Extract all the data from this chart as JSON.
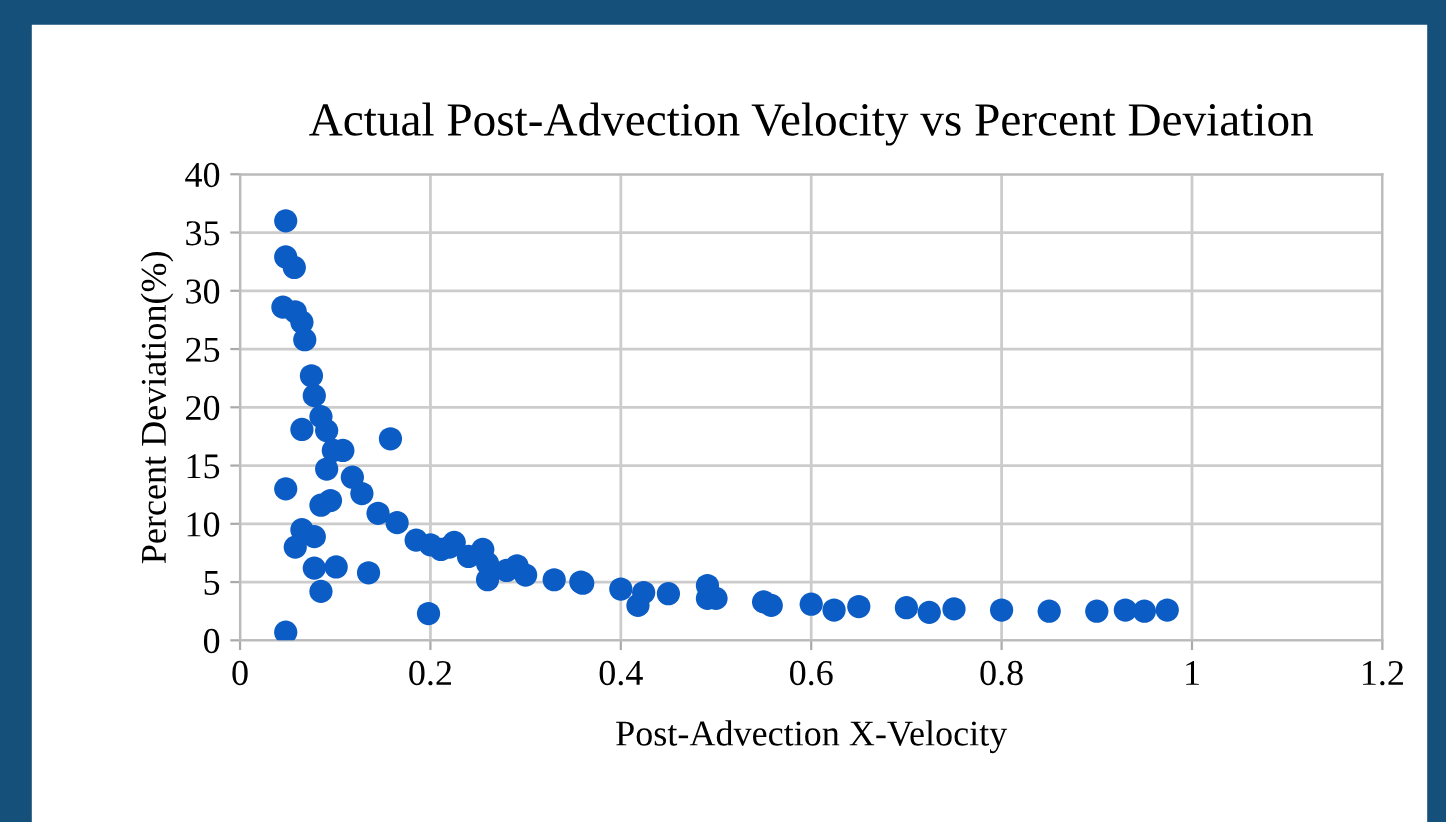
{
  "chart_data": {
    "type": "scatter",
    "title": "Actual Post-Advection Velocity vs Percent Deviation",
    "xlabel": "Post-Advection X-Velocity",
    "ylabel": "Percent Deviation(%)",
    "xlim": [
      0,
      1.2
    ],
    "xticks": [
      0,
      0.2,
      0.4,
      0.6,
      0.8,
      1,
      1.2
    ],
    "ylim": [
      0,
      40
    ],
    "yticks": [
      0,
      5,
      10,
      15,
      20,
      25,
      30,
      35,
      40
    ],
    "grid": true,
    "marker": "circle",
    "series": [
      {
        "color": "#0b5cc5",
        "x": [
          0.048,
          0.048,
          0.057,
          0.045,
          0.058,
          0.065,
          0.068,
          0.075,
          0.078,
          0.085,
          0.091,
          0.065,
          0.098,
          0.108,
          0.091,
          0.118,
          0.128,
          0.158,
          0.048,
          0.085,
          0.095,
          0.065,
          0.078,
          0.058,
          0.078,
          0.085,
          0.101,
          0.135,
          0.048,
          0.145,
          0.165,
          0.185,
          0.198,
          0.211,
          0.255,
          0.26,
          0.2,
          0.22,
          0.225,
          0.24,
          0.26,
          0.28,
          0.291,
          0.3,
          0.33,
          0.358,
          0.36,
          0.4,
          0.418,
          0.424,
          0.45,
          0.491,
          0.491,
          0.5,
          0.55,
          0.558,
          0.6,
          0.624,
          0.65,
          0.7,
          0.724,
          0.75,
          0.8,
          0.85,
          0.9,
          0.93,
          0.95,
          0.974
        ],
        "values": [
          36.0,
          32.9,
          32.0,
          28.6,
          28.2,
          27.3,
          25.8,
          22.7,
          21.0,
          19.2,
          18.0,
          18.1,
          16.3,
          16.3,
          14.7,
          14.0,
          12.6,
          17.3,
          13.0,
          11.6,
          12.0,
          9.5,
          8.9,
          8.0,
          6.2,
          4.2,
          6.3,
          5.8,
          0.7,
          10.9,
          10.1,
          8.6,
          2.3,
          7.8,
          7.8,
          5.2,
          8.2,
          8.0,
          8.4,
          7.2,
          6.6,
          6.0,
          6.4,
          5.6,
          5.2,
          5.0,
          4.9,
          4.4,
          3.0,
          4.1,
          4.0,
          3.6,
          4.7,
          3.6,
          3.3,
          3.0,
          3.1,
          2.6,
          2.9,
          2.8,
          2.4,
          2.7,
          2.6,
          2.5,
          2.5,
          2.6,
          2.5,
          2.6
        ]
      }
    ]
  }
}
